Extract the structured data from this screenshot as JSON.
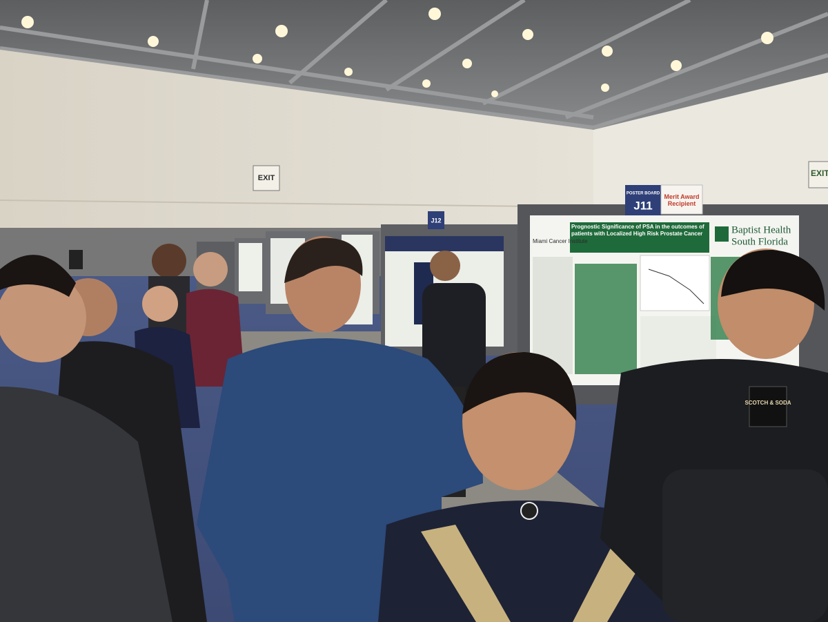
{
  "signs": {
    "exit_left": "EXIT",
    "exit_right": "EXIT",
    "board_label": "POSTER BOARD",
    "board_number": "J11",
    "award": "Merit Award Recipient",
    "board_j12": "J12"
  },
  "poster": {
    "title": "Prognostic Significance of PSA in the outcomes of patients with Localized High Risk Prostate Cancer",
    "institution": "Miami Cancer Institute",
    "logo": [
      "Baptist Health",
      "South Florida"
    ]
  },
  "patch": "SCOTCH & SODA"
}
